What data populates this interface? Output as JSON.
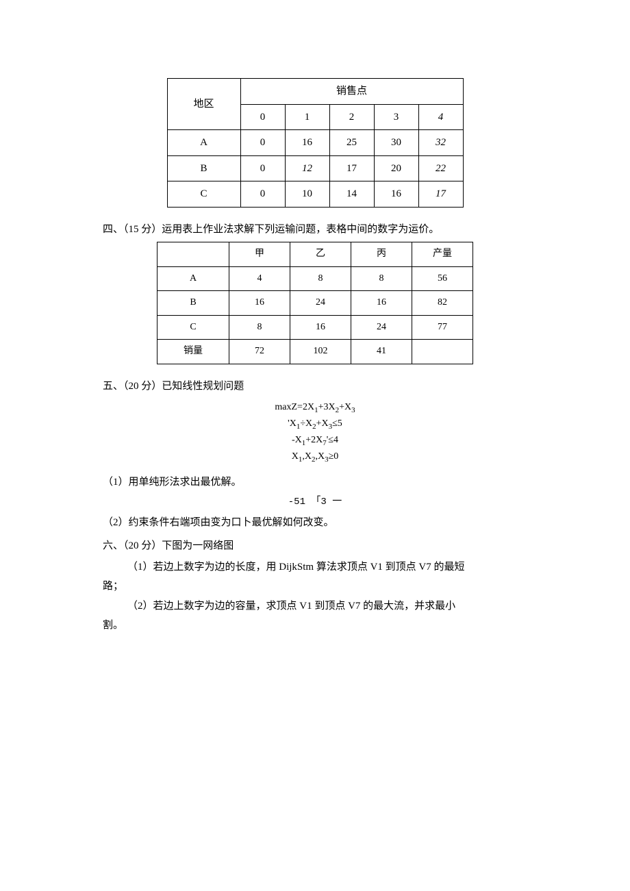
{
  "table1": {
    "region_header": "地区",
    "sales_header": "销售点",
    "cols": [
      "0",
      "1",
      "2",
      "3",
      "4"
    ],
    "rows": [
      {
        "label": "A",
        "vals": [
          "0",
          "16",
          "25",
          "30",
          "32"
        ],
        "italicIdx": [
          4
        ]
      },
      {
        "label": "B",
        "vals": [
          "0",
          "12",
          "17",
          "20",
          "22"
        ],
        "italicIdx": [
          1,
          4
        ]
      },
      {
        "label": "C",
        "vals": [
          "0",
          "10",
          "14",
          "16",
          "17"
        ],
        "italicIdx": [
          4
        ]
      }
    ],
    "col4_italic": true
  },
  "q4": {
    "heading": "四、（15 分）运用表上作业法求解下列运输问题，表格中间的数字为运价。"
  },
  "table2": {
    "col_headers": [
      "",
      "甲",
      "乙",
      "丙",
      "产量"
    ],
    "rows": [
      [
        "A",
        "4",
        "8",
        "8",
        "56"
      ],
      [
        "B",
        "16",
        "24",
        "16",
        "82"
      ],
      [
        "C",
        "8",
        "16",
        "24",
        "77"
      ]
    ],
    "footer": [
      "销量",
      "72",
      "102",
      "41",
      ""
    ]
  },
  "q5": {
    "heading": "五、（20 分）已知线性规划问题",
    "eq": {
      "l1_pre": "maxZ=2X",
      "l1_s1": "1",
      "l1_m1": "+3X",
      "l1_s2": "2",
      "l1_m2": "+X",
      "l1_s3": "3",
      "l2_pre": "'X",
      "l2_s1": "1",
      "l2_m1": "÷X",
      "l2_s2": "2",
      "l2_m2": "+X",
      "l2_s3": "3",
      "l2_post": "≤5",
      "l3_pre": "-X",
      "l3_s1": "1",
      "l3_m1": "+2X",
      "l3_s2": "7",
      "l3_post": "'≤4",
      "l4_pre": "X",
      "l4_s1": "1",
      "l4_m1": ",X",
      "l4_s2": "2",
      "l4_m2": ",X",
      "l4_s3": "3",
      "l4_post": "≥0"
    },
    "p1": "（1）用单纯形法求出最优解。",
    "mid": "-51   「3 一",
    "p2": "（2）约束条件右端项由变为口卜最优解如何改变。"
  },
  "q6": {
    "heading": "六、（20 分）下图为一网络图",
    "p1": "（1）若边上数字为边的长度，用 DijkStm 算法求顶点 V1 到顶点 V7 的最短",
    "p1b": "路；",
    "p2": "（2）若边上数字为边的容量，求顶点 V1 到顶点 V7 的最大流，并求最小",
    "p2b": "割。"
  }
}
